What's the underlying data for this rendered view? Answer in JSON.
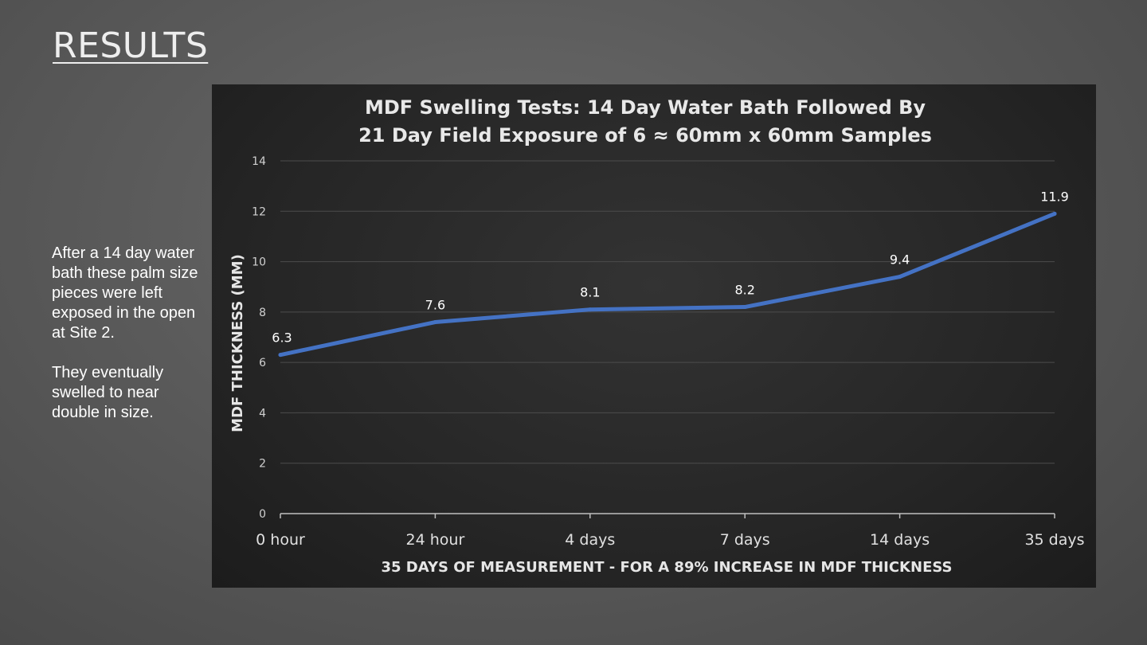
{
  "slide": {
    "title": "RESULTS",
    "paragraphs": [
      "After a 14 day water bath these palm size pieces were left exposed in the open at Site 2.",
      "They eventually swelled to near double in size."
    ]
  },
  "chart_data": {
    "type": "line",
    "title_lines": [
      "MDF Swelling Tests: 14 Day Water Bath Followed By",
      "21 Day Field Exposure of 6 ≈ 60mm x 60mm Samples"
    ],
    "categories": [
      "0 hour",
      "24 hour",
      "4 days",
      "7 days",
      "14 days",
      "35 days"
    ],
    "values": [
      6.3,
      7.6,
      8.1,
      8.2,
      9.4,
      11.9
    ],
    "data_labels": [
      "6.3",
      "7.6",
      "8.1",
      "8.2",
      "9.4",
      "11.9"
    ],
    "xlabel": "35 DAYS OF MEASUREMENT - FOR A 89% INCREASE IN MDF THICKNESS",
    "ylabel": "MDF THICKNESS (MM)",
    "ylim": [
      0,
      14
    ],
    "yticks": [
      0,
      2,
      4,
      6,
      8,
      10,
      12,
      14
    ],
    "grid": true,
    "legend": "none",
    "line_color": "#4472c4"
  }
}
